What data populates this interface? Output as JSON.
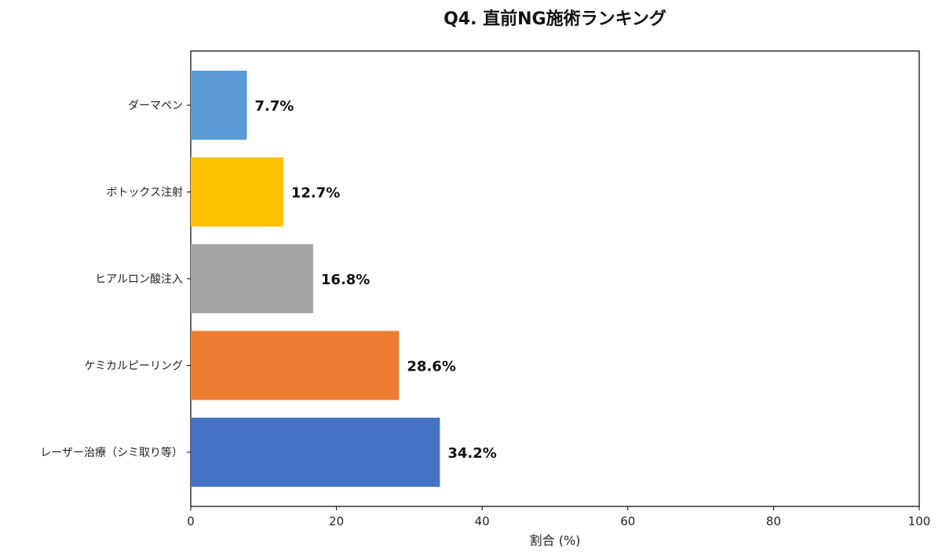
{
  "chart_data": {
    "type": "bar",
    "orientation": "horizontal",
    "title": "Q4. 直前NG施術ランキング",
    "xlabel": "割合 (%)",
    "ylabel": "",
    "xlim": [
      0,
      100
    ],
    "xticks": [
      0,
      20,
      40,
      60,
      80,
      100
    ],
    "grid": false,
    "categories": [
      "ダーマペン",
      "ボトックス注射",
      "ヒアルロン酸注入",
      "ケミカルピーリング",
      "レーザー治療（シミ取り等）"
    ],
    "values": [
      7.7,
      12.7,
      16.8,
      28.6,
      34.2
    ],
    "value_labels": [
      "7.7%",
      "12.7%",
      "16.8%",
      "28.6%",
      "34.2%"
    ],
    "colors": [
      "#5b9bd5",
      "#ffc000",
      "#a5a5a5",
      "#ed7d31",
      "#4472c4"
    ]
  }
}
